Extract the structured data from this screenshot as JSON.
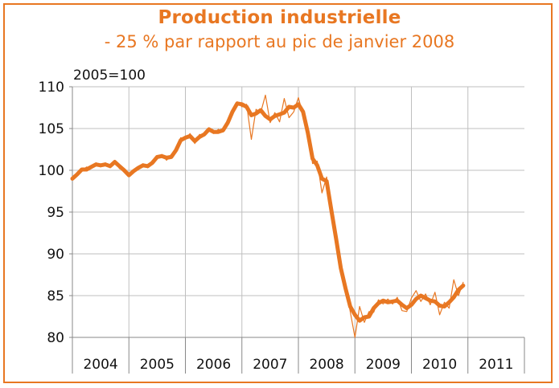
{
  "chart_data": {
    "type": "line",
    "title": "Production industrielle",
    "subtitle": "- 25 % par rapport au pic de janvier 2008",
    "unit_label": "2005=100",
    "ylim": [
      80,
      110
    ],
    "yticks": [
      "80",
      "85",
      "90",
      "95",
      "100",
      "105",
      "110"
    ],
    "xlim": [
      2004.0,
      2012.0
    ],
    "categories": [
      "2004",
      "2005",
      "2006",
      "2007",
      "2008",
      "2009",
      "2010",
      "2011"
    ],
    "grid": true,
    "legend": "none",
    "colors": {
      "line": "#e87722",
      "frame": "#e87722",
      "grid": "#bfbfbf"
    },
    "series": [
      {
        "name": "",
        "style": "thick",
        "x": [
          2004.0,
          2004.083,
          2004.167,
          2004.25,
          2004.333,
          2004.417,
          2004.5,
          2004.583,
          2004.667,
          2004.75,
          2004.833,
          2004.917,
          2005.0,
          2005.083,
          2005.167,
          2005.25,
          2005.333,
          2005.417,
          2005.5,
          2005.583,
          2005.667,
          2005.75,
          2005.833,
          2005.917,
          2006.0,
          2006.083,
          2006.167,
          2006.25,
          2006.333,
          2006.417,
          2006.5,
          2006.583,
          2006.667,
          2006.75,
          2006.833,
          2006.917,
          2007.0,
          2007.083,
          2007.167,
          2007.25,
          2007.333,
          2007.417,
          2007.5,
          2007.583,
          2007.667,
          2007.75,
          2007.833,
          2007.917,
          2008.0,
          2008.083,
          2008.167,
          2008.25,
          2008.333,
          2008.417,
          2008.5,
          2008.583,
          2008.667,
          2008.75,
          2008.833,
          2008.917,
          2009.0,
          2009.083,
          2009.167,
          2009.25,
          2009.333,
          2009.417,
          2009.5,
          2009.583,
          2009.667,
          2009.75,
          2009.833,
          2009.917,
          2010.0,
          2010.083,
          2010.167,
          2010.25,
          2010.333,
          2010.417,
          2010.5,
          2010.583,
          2010.667,
          2010.75,
          2010.833,
          2010.917
        ],
        "y": [
          99.0,
          99.5,
          100.1,
          100.1,
          100.4,
          100.7,
          100.6,
          100.7,
          100.5,
          101.0,
          100.5,
          100.0,
          99.4,
          99.9,
          100.3,
          100.6,
          100.5,
          100.9,
          101.6,
          101.7,
          101.5,
          101.6,
          102.4,
          103.6,
          103.9,
          104.1,
          103.5,
          104.0,
          104.3,
          104.9,
          104.6,
          104.6,
          104.8,
          105.7,
          107.0,
          108.0,
          107.9,
          107.6,
          106.6,
          106.8,
          107.2,
          106.5,
          106.1,
          106.5,
          106.7,
          106.9,
          107.6,
          107.5,
          107.9,
          107.0,
          104.5,
          101.4,
          100.6,
          99.0,
          98.7,
          95.2,
          91.8,
          88.3,
          85.9,
          83.7,
          82.7,
          82.0,
          82.4,
          82.5,
          83.5,
          84.1,
          84.4,
          84.2,
          84.3,
          84.4,
          83.9,
          83.5,
          83.9,
          84.6,
          85.0,
          84.7,
          84.4,
          84.3,
          83.8,
          83.7,
          84.2,
          84.8,
          85.7,
          86.2
        ]
      },
      {
        "name": "",
        "style": "thin",
        "x": [
          2004.0,
          2004.083,
          2004.167,
          2004.25,
          2004.333,
          2004.417,
          2004.5,
          2004.583,
          2004.667,
          2004.75,
          2004.833,
          2004.917,
          2005.0,
          2005.083,
          2005.167,
          2005.25,
          2005.333,
          2005.417,
          2005.5,
          2005.583,
          2005.667,
          2005.75,
          2005.833,
          2005.917,
          2006.0,
          2006.083,
          2006.167,
          2006.25,
          2006.333,
          2006.417,
          2006.5,
          2006.583,
          2006.667,
          2006.75,
          2006.833,
          2006.917,
          2007.0,
          2007.083,
          2007.167,
          2007.25,
          2007.333,
          2007.417,
          2007.5,
          2007.583,
          2007.667,
          2007.75,
          2007.833,
          2007.917,
          2008.0,
          2008.083,
          2008.167,
          2008.25,
          2008.333,
          2008.417,
          2008.5,
          2008.583,
          2008.667,
          2008.75,
          2008.833,
          2008.917,
          2009.0,
          2009.083,
          2009.167,
          2009.25,
          2009.333,
          2009.417,
          2009.5,
          2009.583,
          2009.667,
          2009.75,
          2009.833,
          2009.917,
          2010.0,
          2010.083,
          2010.167,
          2010.25,
          2010.333,
          2010.417,
          2010.5,
          2010.583,
          2010.667,
          2010.75,
          2010.833,
          2010.917
        ],
        "y": [
          99.2,
          99.7,
          99.9,
          100.4,
          100.2,
          100.9,
          100.4,
          100.9,
          100.3,
          101.2,
          100.2,
          100.1,
          99.3,
          100.1,
          100.1,
          100.8,
          100.3,
          101.2,
          101.4,
          101.9,
          101.2,
          101.9,
          102.1,
          103.9,
          103.7,
          104.4,
          103.2,
          104.3,
          104.1,
          105.1,
          104.4,
          104.9,
          104.6,
          106.0,
          106.8,
          108.2,
          107.6,
          107.9,
          103.7,
          107.3,
          106.9,
          109.0,
          105.7,
          106.9,
          105.8,
          108.6,
          106.3,
          107.0,
          108.7,
          106.6,
          104.9,
          100.8,
          101.1,
          97.3,
          99.2,
          94.6,
          92.3,
          87.6,
          86.4,
          83.1,
          80.0,
          83.7,
          81.8,
          83.1,
          83.0,
          84.5,
          84.0,
          84.6,
          84.0,
          84.8,
          83.2,
          83.1,
          84.7,
          85.6,
          84.3,
          85.2,
          83.9,
          85.4,
          82.7,
          84.2,
          83.5,
          86.9,
          85.0,
          86.6
        ]
      }
    ]
  }
}
